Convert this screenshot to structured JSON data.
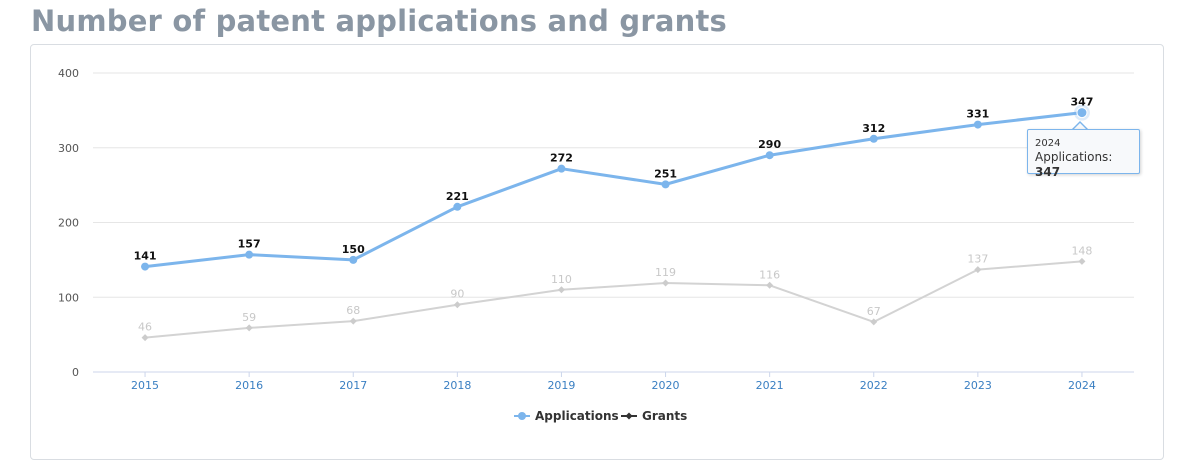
{
  "page": {
    "title": "Number of patent applications and grants"
  },
  "chart_data": {
    "type": "line",
    "title": "Number of patent applications and grants",
    "categories": [
      "2015",
      "2016",
      "2017",
      "2018",
      "2019",
      "2020",
      "2021",
      "2022",
      "2023",
      "2024"
    ],
    "ylim": [
      0,
      400
    ],
    "yticks": [
      0,
      100,
      200,
      300,
      400
    ],
    "grid": true,
    "legend_position": "bottom-center",
    "series": [
      {
        "name": "Applications",
        "color": "#7cb5ec",
        "values": [
          141,
          157,
          150,
          221,
          272,
          251,
          290,
          312,
          331,
          347
        ]
      },
      {
        "name": "Grants",
        "color": "#d3d3d3",
        "values": [
          46,
          59,
          68,
          90,
          110,
          119,
          116,
          67,
          137,
          148
        ]
      }
    ]
  },
  "tooltip": {
    "category": "2024",
    "series_name": "Applications",
    "value": "347"
  }
}
